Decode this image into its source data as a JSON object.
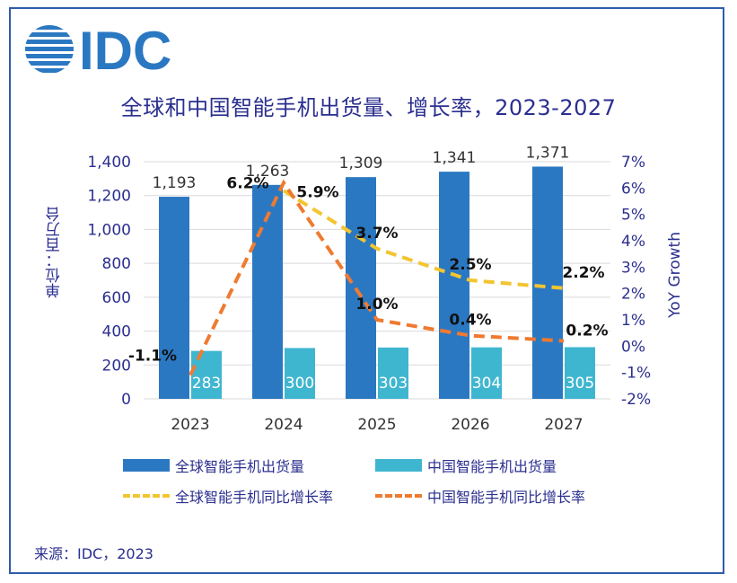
{
  "logo_text": "IDC",
  "title": "全球和中国智能手机出货量、增长率，2023-2027",
  "source": "来源：IDC，2023",
  "colors": {
    "global_bar": "#2b78c2",
    "china_bar": "#3fb6d0",
    "global_line": "#f2c531",
    "china_line": "#ef7a30",
    "text": "#2b2f8f",
    "grid": "#d9d9d9"
  },
  "chart_data": {
    "type": "bar",
    "categories": [
      "2023",
      "2024",
      "2025",
      "2026",
      "2027"
    ],
    "ylabel": "单位：百万台",
    "y2label": "YoY Growth",
    "ylim": [
      0,
      1400
    ],
    "y_ticks": [
      "0",
      "200",
      "400",
      "600",
      "800",
      "1,000",
      "1,200",
      "1,400"
    ],
    "y2lim": [
      -2,
      7
    ],
    "y2_ticks": [
      "-2%",
      "-1%",
      "0%",
      "1%",
      "2%",
      "3%",
      "4%",
      "5%",
      "6%",
      "7%"
    ],
    "grid": true,
    "legend_placement": "bottom",
    "series": [
      {
        "name": "全球智能手机出货量",
        "type": "bar",
        "axis": "left",
        "values": [
          1193,
          1263,
          1309,
          1341,
          1371
        ],
        "labels": [
          "1,193",
          "1,263",
          "1,309",
          "1,341",
          "1,371"
        ]
      },
      {
        "name": "中国智能手机出货量",
        "type": "bar",
        "axis": "left",
        "values": [
          283,
          300,
          303,
          304,
          305
        ],
        "labels": [
          "283",
          "300",
          "303",
          "304",
          "305"
        ]
      },
      {
        "name": "全球智能手机同比增长率",
        "type": "line",
        "axis": "right",
        "style": "dashed",
        "values": [
          null,
          5.9,
          3.7,
          2.5,
          2.2
        ],
        "labels": [
          "",
          "5.9%",
          "3.7%",
          "2.5%",
          "2.2%"
        ]
      },
      {
        "name": "中国智能手机同比增长率",
        "type": "line",
        "axis": "right",
        "style": "dashed",
        "values": [
          -1.1,
          6.2,
          1.0,
          0.4,
          0.2
        ],
        "labels": [
          "-1.1%",
          "6.2%",
          "1.0%",
          "0.4%",
          "0.2%"
        ]
      }
    ]
  }
}
